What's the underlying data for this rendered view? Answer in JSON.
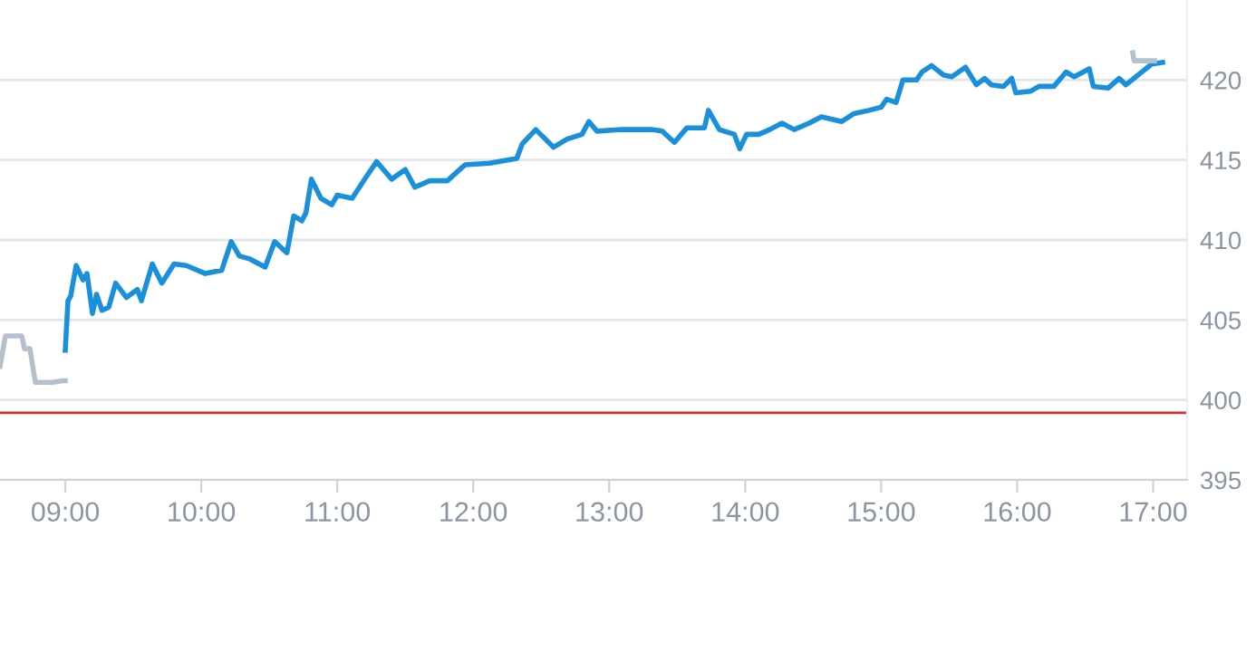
{
  "chart_data": {
    "type": "line",
    "series": [
      {
        "color": "#b4c1cd",
        "x": [
          8.52,
          8.56,
          8.68,
          8.7,
          8.74,
          8.78,
          8.91,
          8.98,
          9.0
        ],
        "values": [
          402.1,
          404.0,
          404.0,
          403.2,
          403.2,
          401.1,
          401.1,
          401.2,
          401.2
        ]
      },
      {
        "color": "#1a8fdb",
        "x": [
          9.0,
          9.02,
          9.04,
          9.08,
          9.13,
          9.16,
          9.2,
          9.23,
          9.27,
          9.32,
          9.37,
          9.45,
          9.53,
          9.56,
          9.64,
          9.71,
          9.8,
          9.89,
          10.03,
          10.15,
          10.22,
          10.28,
          10.36,
          10.47,
          10.54,
          10.59,
          10.63,
          10.68,
          10.74,
          10.77,
          10.81,
          10.88,
          10.96,
          11.0,
          11.11,
          11.21,
          11.29,
          11.4,
          11.5,
          11.57,
          11.68,
          11.81,
          11.94,
          12.12,
          12.32,
          12.36,
          12.46,
          12.59,
          12.69,
          12.8,
          12.85,
          12.91,
          13.09,
          13.31,
          13.39,
          13.48,
          13.57,
          13.7,
          13.73,
          13.81,
          13.92,
          13.96,
          14.01,
          14.1,
          14.18,
          14.27,
          14.36,
          14.47,
          14.56,
          14.71,
          14.8,
          14.91,
          15.0,
          15.04,
          15.11,
          15.16,
          15.26,
          15.3,
          15.37,
          15.46,
          15.52,
          15.62,
          15.7,
          15.76,
          15.81,
          15.9,
          15.96,
          15.99,
          16.1,
          16.16,
          16.27,
          16.36,
          16.42,
          16.53,
          16.56,
          16.67,
          16.75,
          16.8,
          16.99,
          17.07
        ],
        "values": [
          403.1,
          406.2,
          406.5,
          408.4,
          407.5,
          407.9,
          405.4,
          406.6,
          405.6,
          405.8,
          407.3,
          406.4,
          406.9,
          406.2,
          408.5,
          407.3,
          408.5,
          408.4,
          407.9,
          408.1,
          409.9,
          409.0,
          408.8,
          408.3,
          409.9,
          409.5,
          409.2,
          411.5,
          411.2,
          411.7,
          413.8,
          412.6,
          412.2,
          412.8,
          412.6,
          413.9,
          414.9,
          413.8,
          414.4,
          413.3,
          413.7,
          413.7,
          414.7,
          414.8,
          415.1,
          416.0,
          416.9,
          415.8,
          416.3,
          416.6,
          417.4,
          416.8,
          416.9,
          416.9,
          416.8,
          416.1,
          417.0,
          417.0,
          418.1,
          416.9,
          416.6,
          415.7,
          416.6,
          416.6,
          416.9,
          417.3,
          416.9,
          417.3,
          417.7,
          417.4,
          417.9,
          418.1,
          418.3,
          418.8,
          418.6,
          420.0,
          420.0,
          420.5,
          420.9,
          420.3,
          420.2,
          420.8,
          419.7,
          420.1,
          419.7,
          419.6,
          420.1,
          419.2,
          419.3,
          419.6,
          419.6,
          420.5,
          420.2,
          420.7,
          419.6,
          419.5,
          420.1,
          419.7,
          421.0,
          421.1
        ]
      },
      {
        "color": "#b4c1cd",
        "x": [
          16.85,
          16.86,
          17.01
        ],
        "values": [
          421.7,
          421.2,
          421.2
        ]
      }
    ],
    "xlim": [
      8.52,
      17.25
    ],
    "xticks": [
      {
        "value": 9,
        "label": "09:00"
      },
      {
        "value": 10,
        "label": "10:00"
      },
      {
        "value": 11,
        "label": "11:00"
      },
      {
        "value": 12,
        "label": "12:00"
      },
      {
        "value": 13,
        "label": "13:00"
      },
      {
        "value": 14,
        "label": "14:00"
      },
      {
        "value": 15,
        "label": "15:00"
      },
      {
        "value": 16,
        "label": "16:00"
      },
      {
        "value": 17,
        "label": "17:00"
      }
    ],
    "ylim": [
      395,
      425
    ],
    "yticks": [
      395,
      400,
      405,
      410,
      415,
      420
    ],
    "ref_lines": [
      {
        "axis": "y",
        "value": 399.2,
        "color": "#d0312d"
      }
    ],
    "grid": "y",
    "legend": false
  }
}
